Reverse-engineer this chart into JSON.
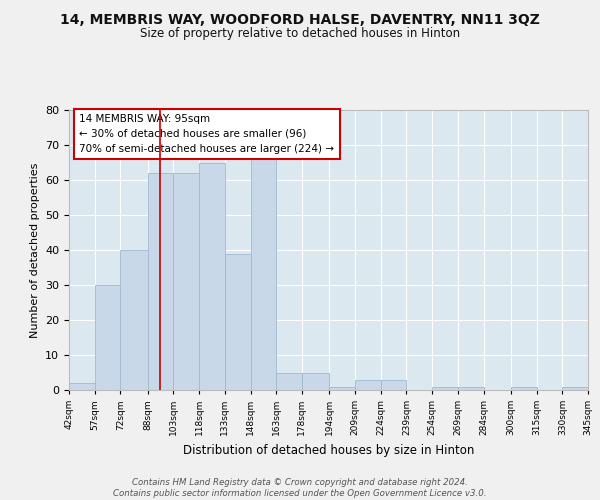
{
  "title": "14, MEMBRIS WAY, WOODFORD HALSE, DAVENTRY, NN11 3QZ",
  "subtitle": "Size of property relative to detached houses in Hinton",
  "xlabel": "Distribution of detached houses by size in Hinton",
  "ylabel": "Number of detached properties",
  "bar_color": "#c8d8e8",
  "bar_edge_color": "#a0b8d0",
  "background_color": "#dce8f0",
  "grid_color": "#ffffff",
  "property_line_x": 95,
  "property_line_color": "#cc0000",
  "annotation_text": "14 MEMBRIS WAY: 95sqm\n← 30% of detached houses are smaller (96)\n70% of semi-detached houses are larger (224) →",
  "annotation_box_color": "#cc0000",
  "footer_text": "Contains HM Land Registry data © Crown copyright and database right 2024.\nContains public sector information licensed under the Open Government Licence v3.0.",
  "bins": [
    42,
    57,
    72,
    88,
    103,
    118,
    133,
    148,
    163,
    178,
    194,
    209,
    224,
    239,
    254,
    269,
    284,
    300,
    315,
    330,
    345
  ],
  "bin_labels": [
    "42sqm",
    "57sqm",
    "72sqm",
    "88sqm",
    "103sqm",
    "118sqm",
    "133sqm",
    "148sqm",
    "163sqm",
    "178sqm",
    "194sqm",
    "209sqm",
    "224sqm",
    "239sqm",
    "254sqm",
    "269sqm",
    "284sqm",
    "300sqm",
    "315sqm",
    "330sqm",
    "345sqm"
  ],
  "counts": [
    2,
    30,
    40,
    62,
    62,
    65,
    39,
    66,
    5,
    5,
    1,
    3,
    3,
    0,
    1,
    1,
    0,
    1,
    0,
    1
  ],
  "ylim": [
    0,
    80
  ],
  "yticks": [
    0,
    10,
    20,
    30,
    40,
    50,
    60,
    70,
    80
  ],
  "fig_width": 6.0,
  "fig_height": 5.0,
  "fig_bg": "#f0f0f0"
}
